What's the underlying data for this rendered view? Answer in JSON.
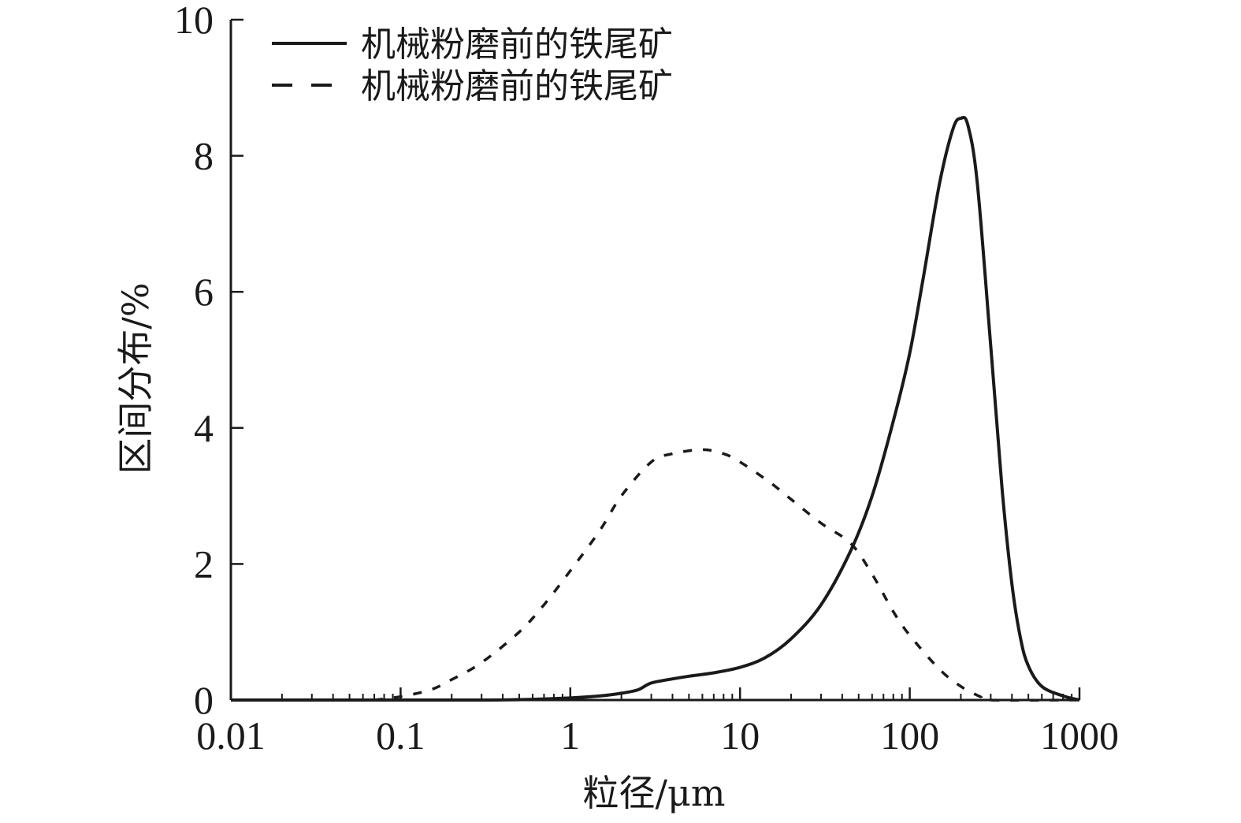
{
  "chart_data": {
    "type": "line",
    "xscale": "log",
    "xlim": [
      0.01,
      1000
    ],
    "ylim": [
      0,
      10
    ],
    "x_ticks": [
      "0.01",
      "0.1",
      "1",
      "10",
      "100",
      "1000"
    ],
    "y_ticks": [
      "0",
      "2",
      "4",
      "6",
      "8",
      "10"
    ],
    "xlabel": "粒径/μm",
    "ylabel": "区间分布/%",
    "grid": false,
    "legend_position": "top-left",
    "series": [
      {
        "name": "机械粉磨前的铁尾矿",
        "style": "solid",
        "color": "#1a1a1a",
        "points": [
          [
            0.01,
            0.0
          ],
          [
            0.1,
            0.0
          ],
          [
            0.3,
            0.0
          ],
          [
            0.6,
            0.01
          ],
          [
            1.0,
            0.03
          ],
          [
            1.5,
            0.06
          ],
          [
            2.0,
            0.1
          ],
          [
            2.5,
            0.15
          ],
          [
            3.0,
            0.25
          ],
          [
            4.0,
            0.31
          ],
          [
            5.0,
            0.35
          ],
          [
            7.0,
            0.4
          ],
          [
            10.0,
            0.48
          ],
          [
            14.0,
            0.62
          ],
          [
            20.0,
            0.9
          ],
          [
            30.0,
            1.4
          ],
          [
            45.0,
            2.2
          ],
          [
            60.0,
            3.0
          ],
          [
            80.0,
            4.1
          ],
          [
            100.0,
            5.1
          ],
          [
            120.0,
            6.2
          ],
          [
            150.0,
            7.6
          ],
          [
            180.0,
            8.4
          ],
          [
            200.0,
            8.55
          ],
          [
            220.0,
            8.45
          ],
          [
            250.0,
            7.6
          ],
          [
            300.0,
            5.2
          ],
          [
            350.0,
            3.1
          ],
          [
            400.0,
            1.7
          ],
          [
            450.0,
            0.9
          ],
          [
            500.0,
            0.5
          ],
          [
            600.0,
            0.2
          ],
          [
            800.0,
            0.06
          ],
          [
            1000.0,
            0.0
          ]
        ]
      },
      {
        "name": "机械粉磨前的铁尾矿",
        "style": "dashed",
        "color": "#1a1a1a",
        "points": [
          [
            0.07,
            0.0
          ],
          [
            0.1,
            0.05
          ],
          [
            0.15,
            0.15
          ],
          [
            0.2,
            0.3
          ],
          [
            0.3,
            0.55
          ],
          [
            0.5,
            1.0
          ],
          [
            0.7,
            1.4
          ],
          [
            1.0,
            1.9
          ],
          [
            1.5,
            2.5
          ],
          [
            2.0,
            3.0
          ],
          [
            3.0,
            3.5
          ],
          [
            4.0,
            3.62
          ],
          [
            6.0,
            3.68
          ],
          [
            8.0,
            3.62
          ],
          [
            10.0,
            3.5
          ],
          [
            15.0,
            3.2
          ],
          [
            20.0,
            2.95
          ],
          [
            30.0,
            2.6
          ],
          [
            45.0,
            2.3
          ],
          [
            60.0,
            1.85
          ],
          [
            80.0,
            1.3
          ],
          [
            100.0,
            0.95
          ],
          [
            150.0,
            0.45
          ],
          [
            200.0,
            0.2
          ],
          [
            260.0,
            0.05
          ],
          [
            300.0,
            0.0
          ],
          [
            1000.0,
            0.0
          ]
        ]
      }
    ]
  }
}
